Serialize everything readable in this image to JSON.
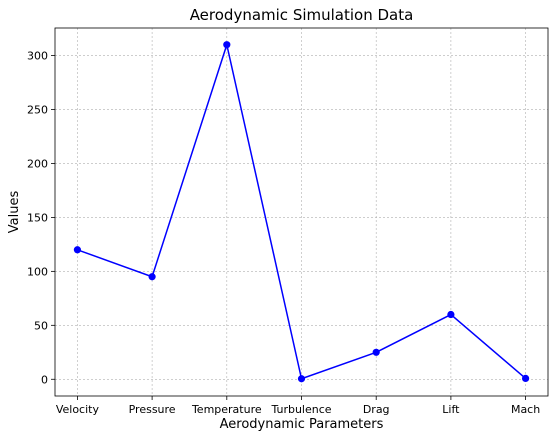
{
  "chart_data": {
    "type": "line",
    "title": "Aerodynamic Simulation Data",
    "xlabel": "Aerodynamic Parameters",
    "ylabel": "Values",
    "categories": [
      "Velocity",
      "Pressure",
      "Temperature",
      "Turbulence",
      "Drag",
      "Lift",
      "Mach"
    ],
    "series": [
      {
        "values": [
          120,
          95,
          310,
          0.5,
          25,
          60,
          0.8
        ]
      }
    ],
    "ylim": [
      -15.5,
      325.5
    ],
    "yticks": [
      0,
      50,
      100,
      150,
      200,
      250,
      300
    ],
    "grid": true,
    "color": "#0000ff",
    "marker": "circle"
  }
}
